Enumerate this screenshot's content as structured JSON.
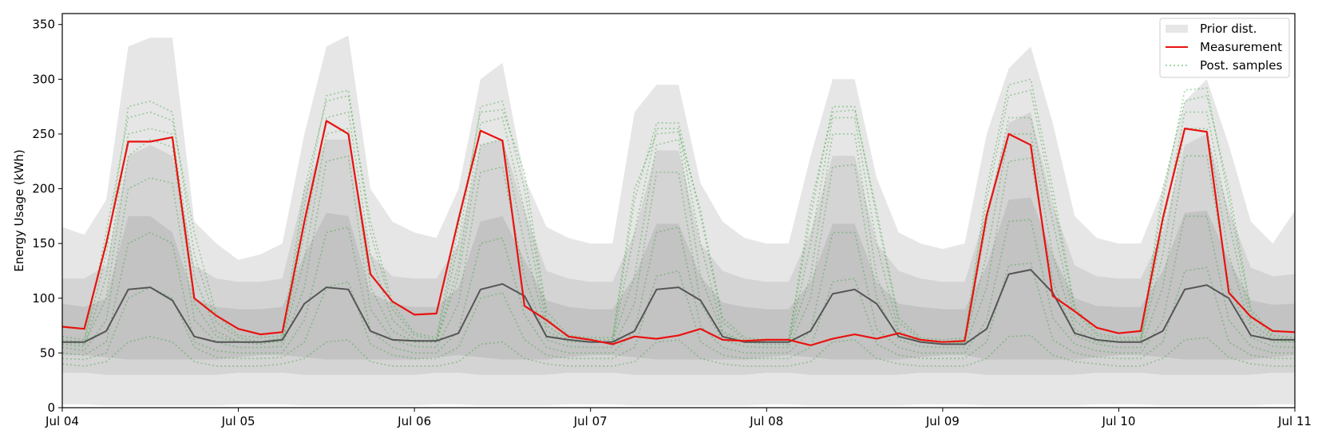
{
  "chart_data": {
    "type": "line",
    "title": "",
    "xlabel": "",
    "ylabel": "Energy Usage (kWh)",
    "xlim": [
      "Jul 04",
      "Jul 11"
    ],
    "ylim": [
      0,
      360
    ],
    "x_ticks": [
      "Jul 04",
      "Jul 05",
      "Jul 06",
      "Jul 07",
      "Jul 08",
      "Jul 09",
      "Jul 10",
      "Jul 11"
    ],
    "y_ticks": [
      0,
      50,
      100,
      150,
      200,
      250,
      300,
      350
    ],
    "grid": false,
    "legend": {
      "placement": "top-right",
      "entries": [
        "Prior dist.",
        "Measurement",
        "Post. samples"
      ]
    },
    "colors": {
      "prior_outer": "#e6e6e6",
      "prior_mid": "#d4d4d4",
      "prior_inner": "#c3c3c3",
      "prior_core": "#b5b5b5",
      "prior_median": "#555555",
      "measurement": "#e8130f",
      "posterior": "#3aa53a"
    },
    "x_hours": [
      0,
      3,
      6,
      9,
      12,
      15,
      18,
      21,
      24,
      27,
      30,
      33,
      36,
      39,
      42,
      45,
      48,
      51,
      54,
      57,
      60,
      63,
      66,
      69,
      72,
      75,
      78,
      81,
      84,
      87,
      90,
      93,
      96,
      99,
      102,
      105,
      108,
      111,
      114,
      117,
      120,
      123,
      126,
      129,
      132,
      135,
      138,
      141,
      144,
      147,
      150,
      153,
      156,
      159,
      162,
      165,
      168
    ],
    "series": [
      {
        "name": "Measurement",
        "values": [
          74,
          72,
          150,
          243,
          243,
          247,
          100,
          84,
          72,
          67,
          69,
          170,
          262,
          250,
          122,
          97,
          85,
          86,
          172,
          253,
          244,
          93,
          80,
          65,
          62,
          58,
          65,
          63,
          66,
          72,
          62,
          61,
          62,
          62,
          57,
          63,
          67,
          63,
          68,
          62,
          60,
          61,
          176,
          250,
          240,
          102,
          88,
          73,
          68,
          70,
          173,
          255,
          252,
          105,
          83,
          70,
          69
        ]
      },
      {
        "name": "Prior median",
        "values": [
          60,
          60,
          70,
          108,
          110,
          98,
          65,
          60,
          60,
          60,
          62,
          95,
          110,
          108,
          70,
          62,
          61,
          61,
          68,
          108,
          113,
          102,
          65,
          62,
          60,
          60,
          70,
          108,
          110,
          98,
          65,
          60,
          60,
          60,
          70,
          104,
          108,
          95,
          65,
          60,
          58,
          58,
          72,
          122,
          126,
          105,
          68,
          62,
          60,
          60,
          70,
          108,
          112,
          100,
          66,
          62,
          62
        ]
      },
      {
        "name": "Prior dist. outer upper",
        "values": [
          165,
          158,
          190,
          330,
          338,
          338,
          170,
          150,
          135,
          140,
          150,
          250,
          330,
          340,
          200,
          170,
          160,
          155,
          200,
          300,
          315,
          210,
          165,
          155,
          150,
          150,
          270,
          295,
          295,
          205,
          170,
          155,
          150,
          150,
          230,
          300,
          300,
          210,
          160,
          150,
          145,
          150,
          250,
          310,
          330,
          260,
          175,
          155,
          150,
          150,
          200,
          280,
          300,
          240,
          170,
          150,
          180
        ]
      },
      {
        "name": "Prior dist. mid upper",
        "values": [
          118,
          118,
          130,
          230,
          240,
          230,
          130,
          118,
          115,
          115,
          118,
          200,
          245,
          245,
          140,
          120,
          118,
          118,
          150,
          240,
          245,
          180,
          125,
          118,
          115,
          115,
          160,
          235,
          235,
          150,
          125,
          118,
          115,
          115,
          160,
          230,
          230,
          150,
          125,
          118,
          115,
          115,
          180,
          260,
          270,
          185,
          130,
          120,
          118,
          118,
          160,
          240,
          250,
          180,
          128,
          120,
          122
        ]
      },
      {
        "name": "Prior dist. inner upper",
        "values": [
          95,
          92,
          100,
          175,
          175,
          160,
          100,
          92,
          90,
          90,
          92,
          140,
          178,
          175,
          105,
          95,
          92,
          92,
          110,
          170,
          175,
          135,
          98,
          92,
          90,
          90,
          120,
          168,
          168,
          120,
          96,
          92,
          90,
          90,
          115,
          168,
          168,
          115,
          95,
          92,
          90,
          90,
          130,
          190,
          192,
          140,
          100,
          93,
          92,
          92,
          125,
          178,
          180,
          135,
          98,
          94,
          95
        ]
      },
      {
        "name": "Prior dist. inner lower",
        "values": [
          48,
          48,
          46,
          44,
          44,
          44,
          44,
          44,
          46,
          48,
          48,
          46,
          44,
          44,
          44,
          44,
          44,
          46,
          48,
          46,
          44,
          44,
          44,
          46,
          48,
          48,
          46,
          44,
          44,
          44,
          44,
          44,
          46,
          48,
          46,
          44,
          44,
          44,
          44,
          46,
          48,
          48,
          44,
          44,
          44,
          44,
          44,
          46,
          48,
          48,
          46,
          44,
          44,
          44,
          44,
          46,
          48
        ]
      },
      {
        "name": "Prior dist. mid lower",
        "values": [
          32,
          32,
          30,
          30,
          30,
          30,
          30,
          30,
          32,
          32,
          32,
          30,
          30,
          30,
          30,
          30,
          30,
          32,
          32,
          30,
          30,
          30,
          30,
          32,
          32,
          32,
          30,
          30,
          30,
          30,
          30,
          30,
          32,
          32,
          30,
          30,
          30,
          30,
          30,
          32,
          32,
          32,
          30,
          30,
          30,
          30,
          30,
          32,
          32,
          32,
          30,
          30,
          30,
          30,
          30,
          32,
          32
        ]
      },
      {
        "name": "Prior dist. outer lower",
        "values": [
          3,
          3,
          2,
          2,
          2,
          2,
          2,
          2,
          3,
          3,
          3,
          2,
          2,
          2,
          2,
          2,
          2,
          3,
          3,
          2,
          2,
          2,
          2,
          3,
          3,
          3,
          2,
          2,
          2,
          2,
          2,
          2,
          3,
          3,
          2,
          2,
          2,
          2,
          2,
          3,
          3,
          3,
          2,
          2,
          2,
          2,
          2,
          3,
          3,
          3,
          2,
          2,
          2,
          2,
          2,
          3,
          3
        ]
      }
    ],
    "posterior_samples": [
      {
        "values": [
          58,
          56,
          120,
          250,
          255,
          250,
          120,
          70,
          60,
          58,
          62,
          160,
          265,
          270,
          140,
          80,
          62,
          60,
          130,
          260,
          265,
          180,
          75,
          62,
          60,
          60,
          160,
          255,
          255,
          150,
          70,
          60,
          58,
          58,
          150,
          265,
          265,
          150,
          70,
          60,
          58,
          60,
          170,
          265,
          265,
          170,
          80,
          62,
          60,
          60,
          165,
          270,
          270,
          170,
          78,
          62,
          60
        ]
      },
      {
        "values": [
          60,
          58,
          100,
          230,
          245,
          238,
          95,
          65,
          60,
          60,
          60,
          135,
          250,
          255,
          110,
          70,
          60,
          60,
          120,
          240,
          245,
          150,
          70,
          60,
          60,
          60,
          120,
          240,
          245,
          120,
          68,
          60,
          60,
          60,
          120,
          250,
          250,
          120,
          68,
          60,
          60,
          60,
          140,
          250,
          250,
          140,
          72,
          60,
          60,
          60,
          140,
          255,
          255,
          140,
          72,
          60,
          60
        ]
      },
      {
        "values": [
          55,
          52,
          80,
          200,
          210,
          205,
          80,
          60,
          55,
          55,
          56,
          110,
          225,
          230,
          90,
          62,
          56,
          55,
          95,
          215,
          220,
          120,
          62,
          56,
          55,
          55,
          95,
          215,
          215,
          95,
          62,
          56,
          55,
          55,
          100,
          220,
          222,
          100,
          62,
          56,
          55,
          55,
          110,
          225,
          228,
          115,
          66,
          58,
          55,
          55,
          110,
          230,
          230,
          112,
          64,
          56,
          55
        ]
      },
      {
        "values": [
          62,
          60,
          140,
          275,
          280,
          270,
          140,
          78,
          64,
          60,
          64,
          185,
          285,
          290,
          160,
          90,
          66,
          62,
          150,
          275,
          280,
          200,
          82,
          64,
          62,
          62,
          190,
          260,
          260,
          175,
          78,
          62,
          60,
          60,
          175,
          275,
          275,
          175,
          78,
          62,
          60,
          62,
          190,
          285,
          290,
          190,
          88,
          66,
          62,
          62,
          190,
          290,
          292,
          190,
          86,
          64,
          62
        ]
      },
      {
        "values": [
          50,
          48,
          60,
          150,
          160,
          150,
          60,
          52,
          50,
          50,
          50,
          80,
          160,
          165,
          70,
          55,
          50,
          50,
          70,
          150,
          155,
          85,
          55,
          50,
          50,
          50,
          70,
          160,
          165,
          75,
          55,
          50,
          50,
          50,
          70,
          160,
          160,
          72,
          55,
          50,
          50,
          50,
          80,
          170,
          172,
          82,
          58,
          52,
          50,
          50,
          80,
          175,
          175,
          80,
          56,
          50,
          50
        ]
      },
      {
        "values": [
          45,
          44,
          50,
          100,
          110,
          100,
          55,
          46,
          45,
          45,
          46,
          60,
          110,
          115,
          58,
          48,
          45,
          45,
          55,
          100,
          105,
          62,
          48,
          45,
          45,
          45,
          55,
          120,
          125,
          60,
          48,
          45,
          45,
          45,
          55,
          115,
          118,
          58,
          48,
          45,
          45,
          45,
          60,
          130,
          132,
          62,
          50,
          46,
          45,
          45,
          60,
          125,
          128,
          60,
          48,
          45,
          45
        ]
      },
      {
        "values": [
          65,
          62,
          160,
          265,
          270,
          262,
          160,
          85,
          66,
          64,
          66,
          200,
          280,
          285,
          170,
          95,
          68,
          64,
          165,
          270,
          272,
          215,
          88,
          66,
          64,
          64,
          200,
          250,
          252,
          180,
          82,
          64,
          62,
          62,
          185,
          270,
          272,
          180,
          82,
          64,
          62,
          64,
          200,
          295,
          300,
          200,
          92,
          68,
          64,
          64,
          200,
          280,
          285,
          200,
          90,
          66,
          64
        ]
      },
      {
        "values": [
          40,
          38,
          42,
          60,
          65,
          60,
          42,
          38,
          38,
          38,
          40,
          45,
          60,
          62,
          42,
          38,
          38,
          38,
          42,
          58,
          60,
          45,
          40,
          38,
          38,
          38,
          42,
          60,
          62,
          45,
          40,
          38,
          38,
          38,
          42,
          60,
          62,
          45,
          40,
          38,
          38,
          38,
          45,
          65,
          66,
          48,
          42,
          40,
          38,
          38,
          45,
          62,
          64,
          46,
          40,
          38,
          38
        ]
      }
    ]
  }
}
